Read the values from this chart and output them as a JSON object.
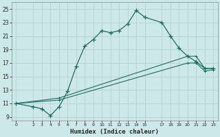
{
  "xlabel": "Humidex (Indice chaleur)",
  "bg_color": "#cce8e8",
  "grid_color": "#b8d0d0",
  "line_color": "#1a6b5e",
  "line1": {
    "x": [
      0,
      2,
      3,
      4,
      5,
      6,
      7,
      8,
      9,
      10,
      11,
      12,
      13,
      14,
      15,
      17,
      18,
      19,
      20,
      21,
      22,
      23
    ],
    "y": [
      11,
      10.5,
      10.2,
      9.2,
      10.5,
      12.8,
      16.5,
      19.5,
      20.5,
      21.8,
      21.5,
      21.8,
      22.8,
      24.8,
      23.8,
      23.0,
      21.0,
      19.2,
      18.0,
      17.2,
      16.2,
      16.2
    ]
  },
  "line2": {
    "x": [
      0,
      5,
      20,
      21,
      22,
      23
    ],
    "y": [
      11,
      11.8,
      18.0,
      18.0,
      16.2,
      16.2
    ]
  },
  "line3": {
    "x": [
      0,
      5,
      20,
      21,
      22,
      23
    ],
    "y": [
      11,
      11.5,
      17.0,
      17.0,
      15.8,
      16.0
    ]
  },
  "ylim": [
    8.5,
    26
  ],
  "xlim": [
    -0.5,
    23.5
  ],
  "yticks": [
    9,
    11,
    13,
    15,
    17,
    19,
    21,
    23,
    25
  ],
  "xticks": [
    0,
    2,
    3,
    4,
    5,
    6,
    7,
    8,
    9,
    10,
    11,
    12,
    13,
    14,
    15,
    17,
    18,
    19,
    20,
    21,
    22,
    23
  ]
}
